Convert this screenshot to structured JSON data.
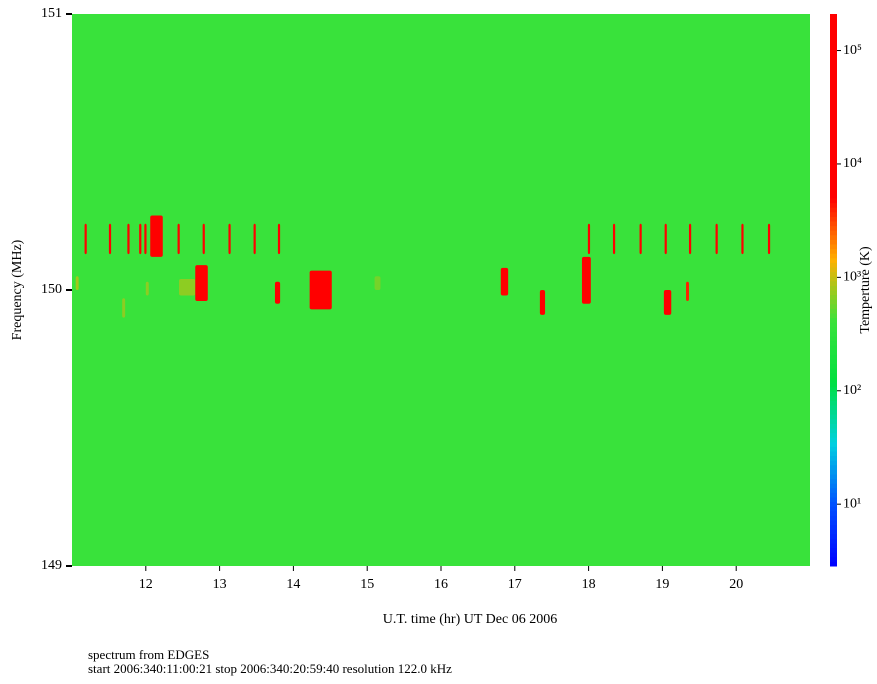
{
  "chart_data": {
    "type": "spectrogram",
    "xlabel": "U.T. time (hr) UT Dec 06 2006",
    "ylabel": "Frequency (MHz)",
    "colorbar_label": "Temperture (K)",
    "notes": [
      "spectrum from EDGES",
      "start 2006:340:11:00:21 stop 2006:340:20:59:40 resolution 122.0 kHz"
    ],
    "xlim": [
      11,
      21
    ],
    "xticks": [
      12,
      13,
      14,
      15,
      16,
      17,
      18,
      19,
      20
    ],
    "ylim": [
      149,
      151
    ],
    "yticks": [
      149,
      150,
      151
    ],
    "clim": [
      2.85,
      210000
    ],
    "cscale": "log",
    "cticks": [
      {
        "value": 10,
        "label": "10¹"
      },
      {
        "value": 100,
        "label": "10²"
      },
      {
        "value": 1000,
        "label": "10³"
      },
      {
        "value": 10000,
        "label": "10⁴"
      },
      {
        "value": 100000,
        "label": "10⁵"
      }
    ],
    "colormap": [
      "#0000ff",
      "#0050ff",
      "#00d0e0",
      "#00e040",
      "#3be23b",
      "#ffb000",
      "#ff0000",
      "#ff0000",
      "#ff0000",
      "#ff0000"
    ],
    "background": 400,
    "cells": [
      {
        "t0": 11.17,
        "t1": 11.2,
        "f0": 150.13,
        "f1": 150.24,
        "value": 5000
      },
      {
        "t0": 11.5,
        "t1": 11.53,
        "f0": 150.13,
        "f1": 150.24,
        "value": 5000
      },
      {
        "t0": 11.75,
        "t1": 11.78,
        "f0": 150.13,
        "f1": 150.24,
        "value": 5000
      },
      {
        "t0": 11.91,
        "t1": 11.94,
        "f0": 150.13,
        "f1": 150.24,
        "value": 5000
      },
      {
        "t0": 11.98,
        "t1": 12.01,
        "f0": 150.13,
        "f1": 150.24,
        "value": 5000
      },
      {
        "t0": 12.43,
        "t1": 12.46,
        "f0": 150.13,
        "f1": 150.24,
        "value": 5000
      },
      {
        "t0": 12.77,
        "t1": 12.8,
        "f0": 150.13,
        "f1": 150.24,
        "value": 5000
      },
      {
        "t0": 13.12,
        "t1": 13.15,
        "f0": 150.13,
        "f1": 150.24,
        "value": 5000
      },
      {
        "t0": 13.46,
        "t1": 13.49,
        "f0": 150.13,
        "f1": 150.24,
        "value": 5000
      },
      {
        "t0": 13.79,
        "t1": 13.82,
        "f0": 150.13,
        "f1": 150.24,
        "value": 5000
      },
      {
        "t0": 17.99,
        "t1": 18.02,
        "f0": 150.13,
        "f1": 150.24,
        "value": 5000
      },
      {
        "t0": 18.33,
        "t1": 18.36,
        "f0": 150.13,
        "f1": 150.24,
        "value": 5000
      },
      {
        "t0": 18.69,
        "t1": 18.72,
        "f0": 150.13,
        "f1": 150.24,
        "value": 5000
      },
      {
        "t0": 19.03,
        "t1": 19.06,
        "f0": 150.13,
        "f1": 150.24,
        "value": 5000
      },
      {
        "t0": 19.36,
        "t1": 19.39,
        "f0": 150.13,
        "f1": 150.24,
        "value": 5000
      },
      {
        "t0": 19.72,
        "t1": 19.75,
        "f0": 150.13,
        "f1": 150.24,
        "value": 5000
      },
      {
        "t0": 20.07,
        "t1": 20.1,
        "f0": 150.13,
        "f1": 150.24,
        "value": 5000
      },
      {
        "t0": 20.43,
        "t1": 20.46,
        "f0": 150.13,
        "f1": 150.24,
        "value": 5000
      },
      {
        "t0": 11.05,
        "t1": 11.09,
        "f0": 150.0,
        "f1": 150.05,
        "value": 800
      },
      {
        "t0": 11.68,
        "t1": 11.72,
        "f0": 149.9,
        "f1": 149.97,
        "value": 700
      },
      {
        "t0": 12.0,
        "t1": 12.04,
        "f0": 149.98,
        "f1": 150.03,
        "value": 700
      },
      {
        "t0": 12.45,
        "t1": 12.67,
        "f0": 149.98,
        "f1": 150.04,
        "value": 700
      },
      {
        "t0": 15.1,
        "t1": 15.18,
        "f0": 150.0,
        "f1": 150.05,
        "value": 600
      },
      {
        "t0": 12.06,
        "t1": 12.23,
        "f0": 150.12,
        "f1": 150.27,
        "value": 8000
      },
      {
        "t0": 12.67,
        "t1": 12.84,
        "f0": 149.96,
        "f1": 150.09,
        "value": 6000
      },
      {
        "t0": 13.75,
        "t1": 13.82,
        "f0": 149.95,
        "f1": 150.03,
        "value": 5000
      },
      {
        "t0": 14.22,
        "t1": 14.52,
        "f0": 149.93,
        "f1": 150.07,
        "value": 8000
      },
      {
        "t0": 16.81,
        "t1": 16.91,
        "f0": 149.98,
        "f1": 150.08,
        "value": 5000
      },
      {
        "t0": 17.34,
        "t1": 17.41,
        "f0": 149.91,
        "f1": 150.0,
        "value": 5000
      },
      {
        "t0": 17.91,
        "t1": 18.03,
        "f0": 149.95,
        "f1": 150.12,
        "value": 6000
      },
      {
        "t0": 19.02,
        "t1": 19.12,
        "f0": 149.91,
        "f1": 150.0,
        "value": 5000
      },
      {
        "t0": 19.32,
        "t1": 19.36,
        "f0": 149.96,
        "f1": 150.03,
        "value": 4000
      }
    ]
  }
}
